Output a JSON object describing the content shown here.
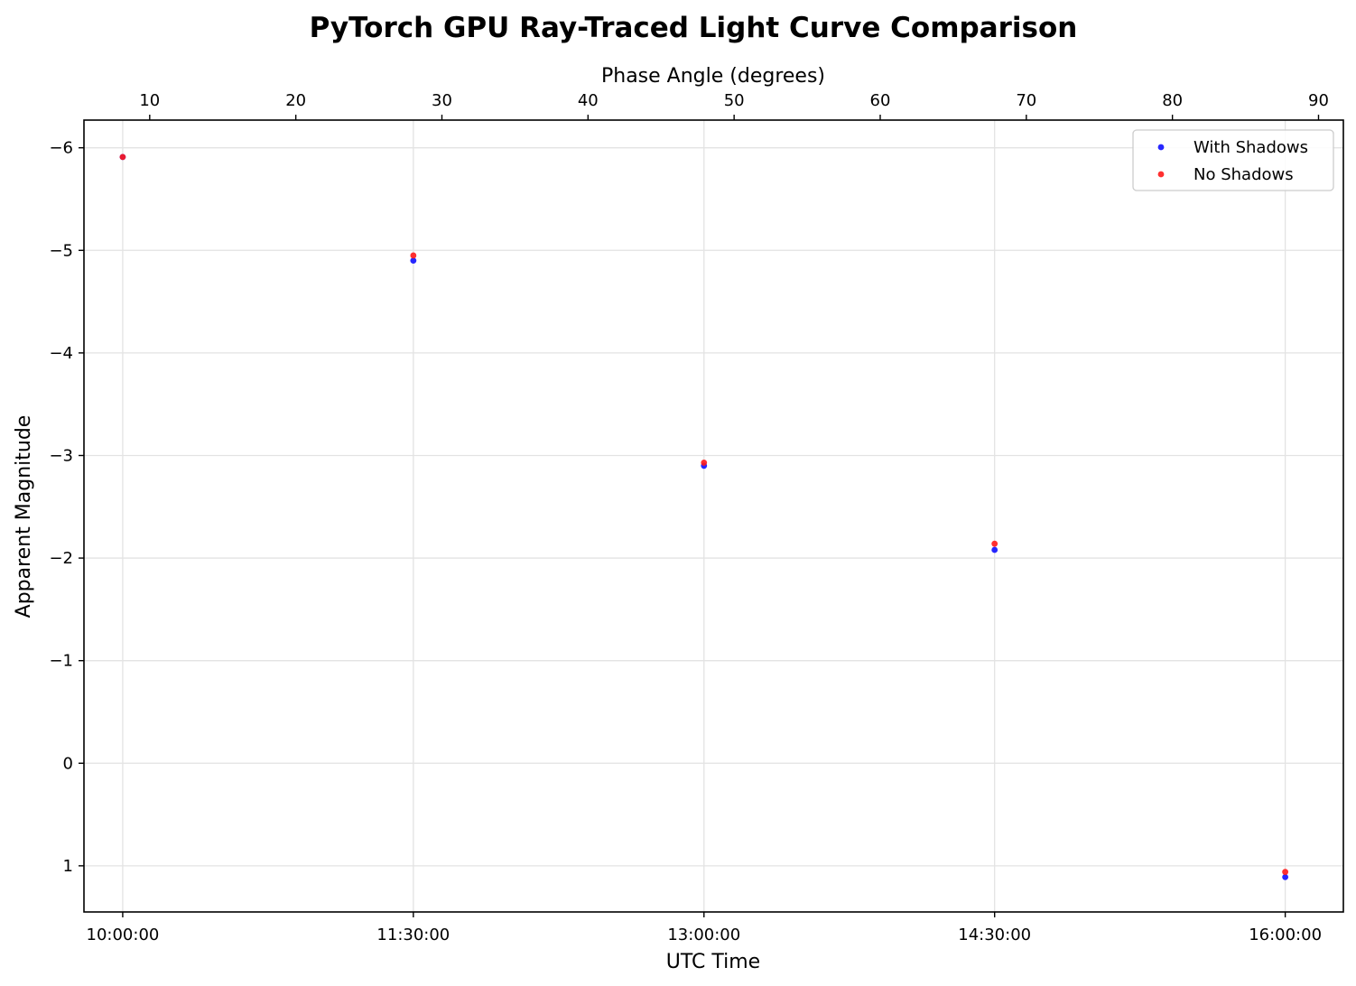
{
  "chart_data": {
    "type": "scatter",
    "title": "PyTorch GPU Ray-Traced Light Curve Comparison",
    "xlabel": "UTC Time",
    "ylabel": "Apparent Magnitude",
    "secondary_xlabel": "Phase Angle (degrees)",
    "x": [
      "10:00:00",
      "11:30:00",
      "13:00:00",
      "14:30:00",
      "16:00:00"
    ],
    "x_ticks": [
      "10:00:00",
      "11:30:00",
      "13:00:00",
      "14:30:00",
      "16:00:00"
    ],
    "xlim": [
      "09:48:00",
      "16:18:00"
    ],
    "secondary_x": [
      9.2,
      28.9,
      48.6,
      68.3,
      87.9
    ],
    "secondary_x_ticks": [
      10,
      20,
      30,
      40,
      50,
      60,
      70,
      80,
      90
    ],
    "secondary_xlim": [
      5.5,
      91.7
    ],
    "y_ticks": [
      1,
      0,
      -1,
      -2,
      -3,
      -4,
      -5,
      -6
    ],
    "y_tick_labels": [
      "1",
      "0",
      "−1",
      "−2",
      "−3",
      "−4",
      "−5",
      "−6"
    ],
    "ylim": [
      1.45,
      -6.27
    ],
    "y_inverted": true,
    "grid": true,
    "legend_position": "top-right",
    "series": [
      {
        "name": "With Shadows",
        "color": "#1010ff",
        "values": [
          -5.91,
          -4.9,
          -2.9,
          -2.08,
          1.11
        ]
      },
      {
        "name": "No Shadows",
        "color": "#ff1a1a",
        "values": [
          -5.91,
          -4.95,
          -2.93,
          -2.14,
          1.06
        ]
      }
    ]
  }
}
